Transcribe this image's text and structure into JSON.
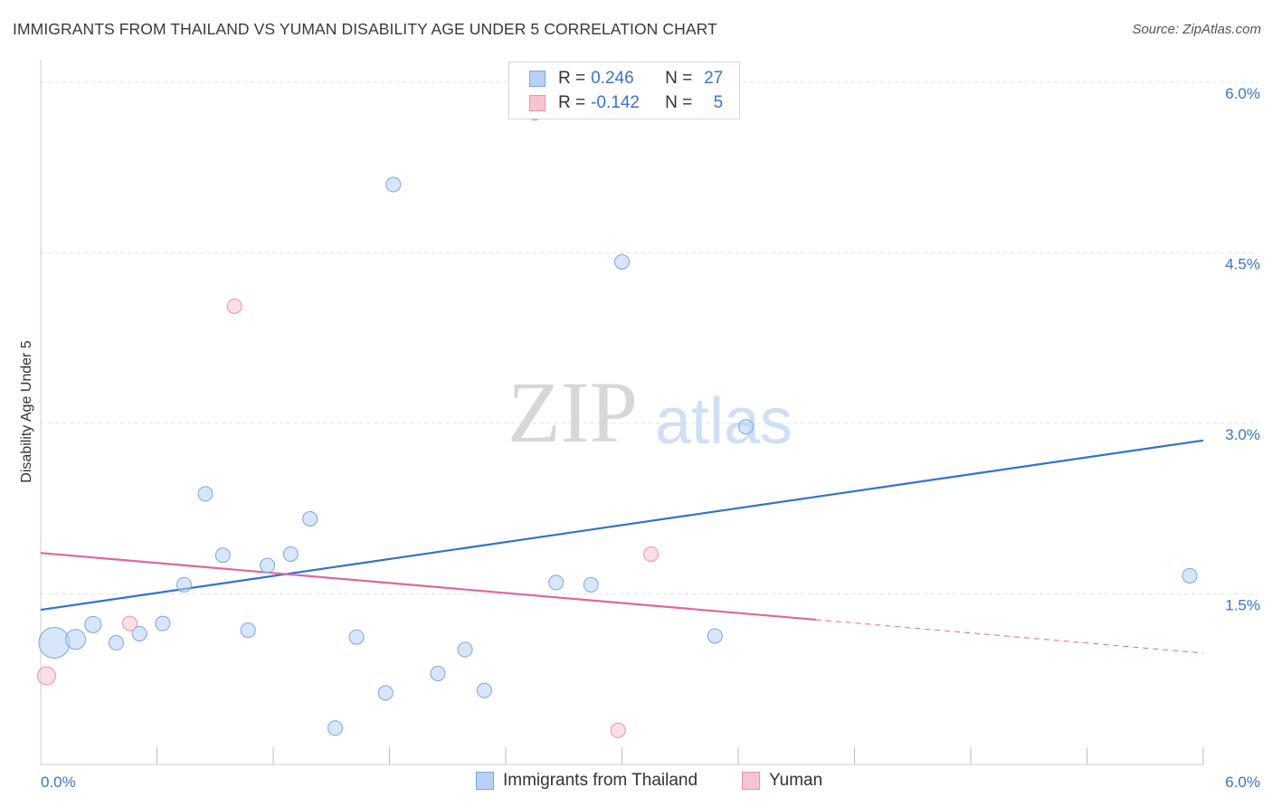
{
  "title": "IMMIGRANTS FROM THAILAND VS YUMAN DISABILITY AGE UNDER 5 CORRELATION CHART",
  "source": "Source: ZipAtlas.com",
  "watermark": {
    "zip": "ZIP",
    "atlas": "atlas"
  },
  "legend": {
    "series1": {
      "r_label": "R =",
      "r_value": "0.246",
      "n_label": "N =",
      "n_value": "27"
    },
    "series2": {
      "r_label": "R =",
      "r_value": "-0.142",
      "n_label": "N =",
      "n_value": "5"
    }
  },
  "colors": {
    "blue_fill": "#b8d2f5",
    "blue_stroke": "#7aa6e0",
    "blue_line": "#2f72d0",
    "pink_fill": "#f8c4d2",
    "pink_stroke": "#e891aa",
    "pink_line": "#e0679a",
    "axis_text": "#3a74c8"
  },
  "chart_data": {
    "type": "scatter",
    "title": "IMMIGRANTS FROM THAILAND VS YUMAN DISABILITY AGE UNDER 5 CORRELATION CHART",
    "xlabel": "",
    "ylabel": "Disability Age Under 5",
    "xlim": [
      0,
      6
    ],
    "ylim": [
      0,
      6.15
    ],
    "x_tick_labels": [
      "0.0%",
      "6.0%"
    ],
    "y_ticks": [
      1.5,
      3.0,
      4.5,
      6.0
    ],
    "y_tick_labels": [
      "1.5%",
      "3.0%",
      "4.5%",
      "6.0%"
    ],
    "series": [
      {
        "name": "Immigrants from Thailand",
        "color": "blue",
        "points": [
          {
            "x": 0.07,
            "y": 1.07,
            "size": 17
          },
          {
            "x": 0.18,
            "y": 1.1,
            "size": 11
          },
          {
            "x": 0.27,
            "y": 1.23,
            "size": 9
          },
          {
            "x": 0.39,
            "y": 1.07,
            "size": 8
          },
          {
            "x": 0.51,
            "y": 1.15,
            "size": 8
          },
          {
            "x": 0.63,
            "y": 1.24,
            "size": 8
          },
          {
            "x": 0.74,
            "y": 1.58,
            "size": 8
          },
          {
            "x": 0.85,
            "y": 2.38,
            "size": 8
          },
          {
            "x": 0.94,
            "y": 1.84,
            "size": 8
          },
          {
            "x": 1.07,
            "y": 1.18,
            "size": 8
          },
          {
            "x": 1.17,
            "y": 1.75,
            "size": 8
          },
          {
            "x": 1.29,
            "y": 1.85,
            "size": 8
          },
          {
            "x": 1.39,
            "y": 2.16,
            "size": 8
          },
          {
            "x": 1.52,
            "y": 0.32,
            "size": 8
          },
          {
            "x": 1.63,
            "y": 1.12,
            "size": 8
          },
          {
            "x": 1.78,
            "y": 0.63,
            "size": 8
          },
          {
            "x": 1.82,
            "y": 5.1,
            "size": 8
          },
          {
            "x": 2.05,
            "y": 0.8,
            "size": 8
          },
          {
            "x": 2.19,
            "y": 1.01,
            "size": 8
          },
          {
            "x": 2.29,
            "y": 0.65,
            "size": 8
          },
          {
            "x": 2.55,
            "y": 5.73,
            "size": 8
          },
          {
            "x": 2.66,
            "y": 1.6,
            "size": 8
          },
          {
            "x": 2.84,
            "y": 1.58,
            "size": 8
          },
          {
            "x": 3.0,
            "y": 4.42,
            "size": 8
          },
          {
            "x": 3.48,
            "y": 1.13,
            "size": 8
          },
          {
            "x": 3.64,
            "y": 2.97,
            "size": 8
          },
          {
            "x": 5.93,
            "y": 1.66,
            "size": 8
          }
        ],
        "trend": {
          "x": [
            0.0,
            6.0
          ],
          "y": [
            1.36,
            2.85
          ],
          "dashed_from": null
        }
      },
      {
        "name": "Yuman",
        "color": "pink",
        "points": [
          {
            "x": 0.03,
            "y": 0.78,
            "size": 10
          },
          {
            "x": 0.46,
            "y": 1.24,
            "size": 8
          },
          {
            "x": 1.0,
            "y": 4.03,
            "size": 8
          },
          {
            "x": 2.98,
            "y": 0.3,
            "size": 8
          },
          {
            "x": 3.15,
            "y": 1.85,
            "size": 8
          }
        ],
        "trend": {
          "x": [
            0.0,
            6.0
          ],
          "y": [
            1.86,
            0.98
          ],
          "dashed_from": 4.0
        }
      }
    ]
  }
}
